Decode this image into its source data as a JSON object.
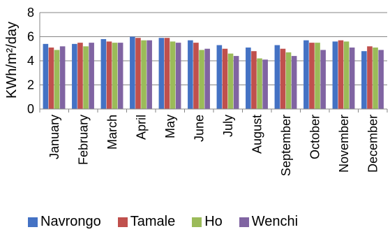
{
  "chart_data": {
    "type": "bar",
    "title": "",
    "xlabel": "",
    "ylabel": "KWh/m²/day",
    "ylim": [
      0,
      8
    ],
    "yticks": [
      0,
      2,
      4,
      6,
      8
    ],
    "grid": true,
    "legend_position": "bottom",
    "categories": [
      "January",
      "February",
      "March",
      "April",
      "May",
      "June",
      "July",
      "August",
      "September",
      "October",
      "November",
      "December"
    ],
    "series": [
      {
        "name": "Navrongo",
        "color": "#4472C4",
        "values": [
          5.4,
          5.4,
          5.8,
          6.0,
          5.9,
          5.7,
          5.3,
          5.1,
          5.3,
          5.7,
          5.6,
          4.8
        ]
      },
      {
        "name": "Tamale",
        "color": "#C0504D",
        "values": [
          5.1,
          5.5,
          5.6,
          5.9,
          5.9,
          5.5,
          5.0,
          4.8,
          5.0,
          5.5,
          5.7,
          5.2
        ]
      },
      {
        "name": "Ho",
        "color": "#9BBB59",
        "values": [
          4.9,
          5.2,
          5.5,
          5.7,
          5.6,
          4.9,
          4.6,
          4.2,
          4.7,
          5.5,
          5.6,
          5.1
        ]
      },
      {
        "name": "Wenchi",
        "color": "#8064A2",
        "values": [
          5.2,
          5.5,
          5.5,
          5.7,
          5.5,
          5.0,
          4.4,
          4.1,
          4.4,
          4.9,
          5.1,
          4.9
        ]
      }
    ]
  }
}
